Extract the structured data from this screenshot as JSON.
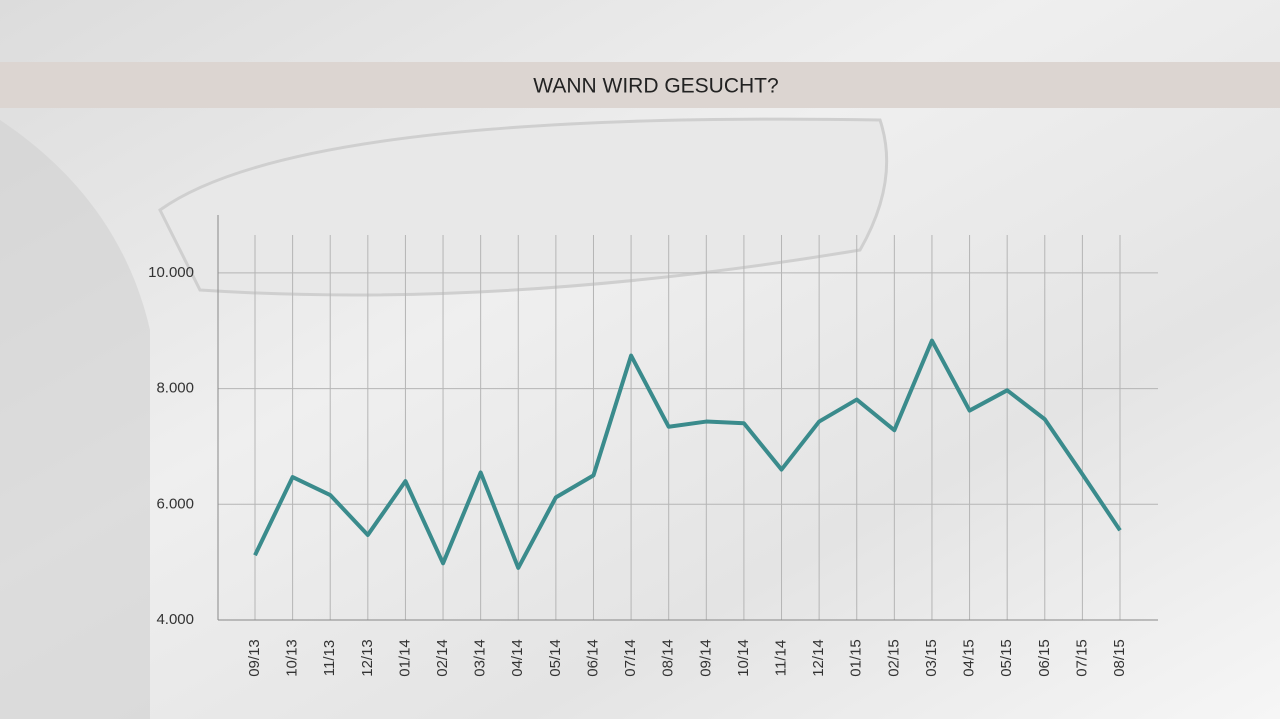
{
  "chart_data": {
    "type": "line",
    "title": "WANN WIRD GESUCHT?",
    "categories": [
      "09/13",
      "10/13",
      "11/13",
      "12/13",
      "01/14",
      "02/14",
      "03/14",
      "04/14",
      "05/14",
      "06/14",
      "07/14",
      "08/14",
      "09/14",
      "10/14",
      "11/14",
      "12/14",
      "01/15",
      "02/15",
      "03/15",
      "04/15",
      "05/15",
      "06/15",
      "07/15",
      "08/15"
    ],
    "values": [
      5120,
      6470,
      6160,
      5470,
      6400,
      4980,
      6550,
      4900,
      6120,
      6500,
      8570,
      7340,
      7430,
      7400,
      6600,
      7430,
      7810,
      7280,
      8830,
      7620,
      7970,
      7470,
      6520,
      5550
    ],
    "color": "#3a8b8c",
    "ylim": [
      4000,
      11000
    ],
    "yticks": [
      {
        "value": 4000,
        "label": "4.000"
      },
      {
        "value": 6000,
        "label": "6.000"
      },
      {
        "value": 8000,
        "label": "8.000"
      },
      {
        "value": 10000,
        "label": "10.000"
      }
    ],
    "grid": true
  }
}
